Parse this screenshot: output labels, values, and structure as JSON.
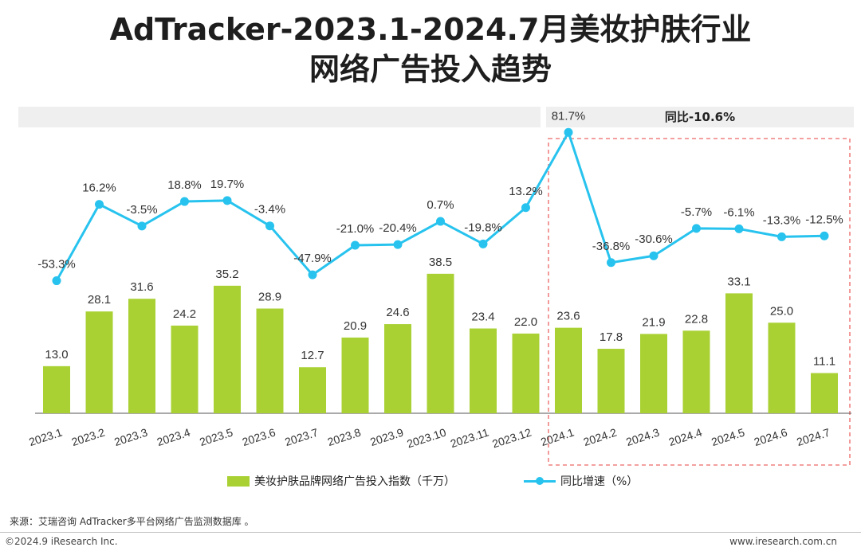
{
  "title_line1": "AdTracker-2023.1-2024.7月美妆护肤行业",
  "title_line2": "网络广告投入趋势",
  "band_label": "同比-10.6%",
  "legend": {
    "bar": "美妆护肤品牌网络广告投入指数（千万）",
    "line": "同比增速（%）"
  },
  "source": "来源：艾瑞咨询 AdTracker多平台网络广告监测数据库 。",
  "footer_left": "©2024.9 iResearch Inc.",
  "footer_right": "www.iresearch.com.cn",
  "colors": {
    "bar": "#a9d134",
    "line": "#27c3ee",
    "highlight_border": "#f08080"
  },
  "chart_data": {
    "type": "bar+line",
    "categories": [
      "2023.1",
      "2023.2",
      "2023.3",
      "2023.4",
      "2023.5",
      "2023.6",
      "2023.7",
      "2023.8",
      "2023.9",
      "2023.10",
      "2023.11",
      "2023.12",
      "2024.1",
      "2024.2",
      "2024.3",
      "2024.4",
      "2024.5",
      "2024.6",
      "2024.7"
    ],
    "series": [
      {
        "name": "美妆护肤品牌网络广告投入指数（千万）",
        "type": "bar",
        "values": [
          13.0,
          28.1,
          31.6,
          24.2,
          35.2,
          28.9,
          12.7,
          20.9,
          24.6,
          38.5,
          23.4,
          22.0,
          23.6,
          17.8,
          21.9,
          22.8,
          33.1,
          25.0,
          11.1
        ],
        "labels": [
          "13.0",
          "28.1",
          "31.6",
          "24.2",
          "35.2",
          "28.9",
          "12.7",
          "20.9",
          "24.6",
          "38.5",
          "23.4",
          "22.0",
          "23.6",
          "17.8",
          "21.9",
          "22.8",
          "33.1",
          "25.0",
          "11.1"
        ]
      },
      {
        "name": "同比增速（%）",
        "type": "line",
        "values": [
          -53.3,
          16.2,
          -3.5,
          18.8,
          19.7,
          -3.4,
          -47.9,
          -21.0,
          -20.4,
          0.7,
          -19.8,
          13.2,
          81.7,
          -36.8,
          -30.6,
          -5.7,
          -6.1,
          -13.3,
          -12.5
        ],
        "labels": [
          "-53.3%",
          "16.2%",
          "-3.5%",
          "18.8%",
          "19.7%",
          "-3.4%",
          "-47.9%",
          "-21.0%",
          "-20.4%",
          "0.7%",
          "-19.8%",
          "13.2%",
          "81.7%",
          "-36.8%",
          "-30.6%",
          "-5.7%",
          "-6.1%",
          "-13.3%",
          "-12.5%"
        ]
      }
    ],
    "highlight": {
      "from": "2024.1",
      "to": "2024.7",
      "label": "同比-10.6%"
    }
  }
}
